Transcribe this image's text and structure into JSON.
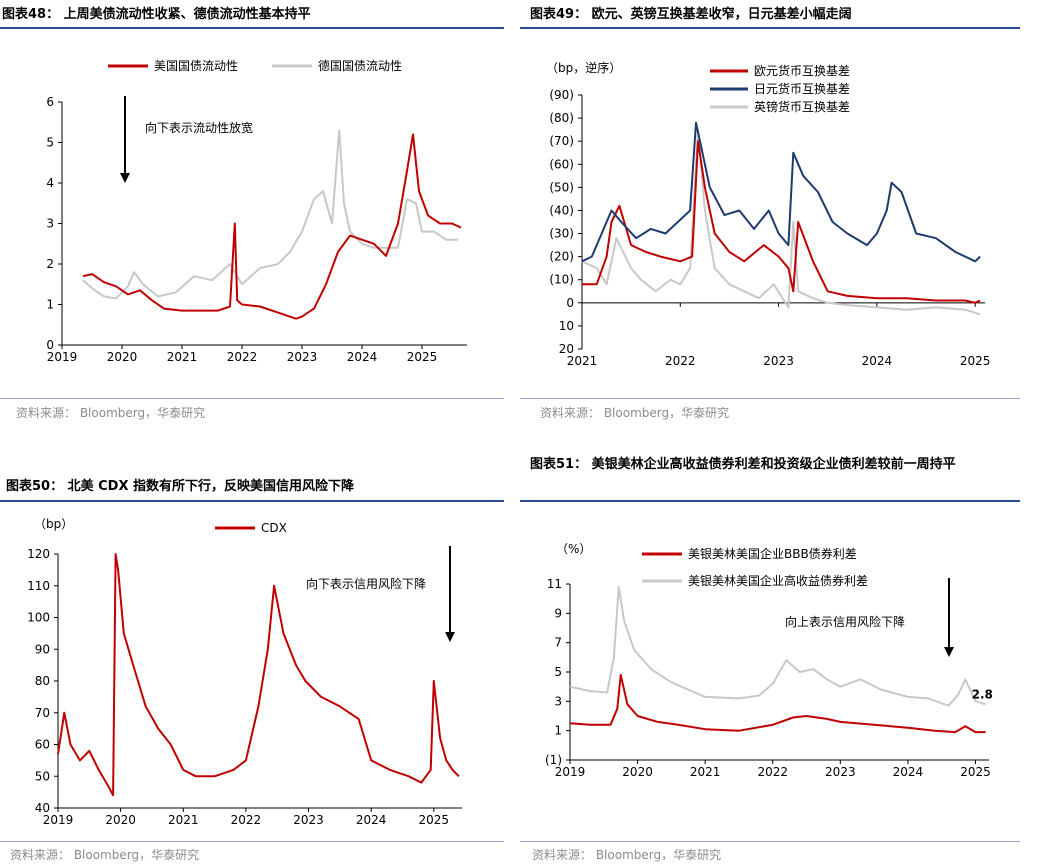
{
  "panels": [
    {
      "title": "图表48：  上周美债流动性收紧、德债流动性基本持平",
      "source": "资料来源：  Bloomberg，华泰研究"
    },
    {
      "title": "图表49：  欧元、英镑互换基差收窄，日元基差小幅走阔",
      "source": "资料来源：  Bloomberg，华泰研究"
    },
    {
      "title": "图表50：  北美 CDX 指数有所下行，反映美国信用风险下降",
      "source": "资料来源：  Bloomberg，华泰研究"
    },
    {
      "title": "图表51：  美银美林企业高收益债券利差和投资级企业债利差较前一周持平",
      "source": "资料来源：  Bloomberg，华泰研究"
    }
  ],
  "chart_data": [
    {
      "type": "line",
      "title": "上周美债流动性收紧、德债流动性基本持平",
      "ylabel": "",
      "ylim": [
        0,
        6
      ],
      "yticks": [
        0,
        1,
        2,
        3,
        4,
        5,
        6
      ],
      "ytick_labels": [
        "0",
        "1",
        "2",
        "3",
        "4",
        "5",
        "6"
      ],
      "xlim": [
        2019,
        2025.75
      ],
      "xticks": [
        2019,
        2020,
        2021,
        2022,
        2023,
        2024,
        2025
      ],
      "xtick_labels": [
        "2019",
        "2020",
        "2021",
        "2022",
        "2023",
        "2024",
        "2025"
      ],
      "annotation": "向下表示流动性放宽",
      "legend": [
        "美国国债流动性",
        "德国国债流动性"
      ],
      "series": [
        {
          "name": "美国国债流动性",
          "color": "#c00000",
          "x": [
            2019.35,
            2019.5,
            2019.7,
            2019.9,
            2020.1,
            2020.3,
            2020.5,
            2020.7,
            2021.0,
            2021.3,
            2021.6,
            2021.8,
            2021.88,
            2021.92,
            2022.0,
            2022.3,
            2022.6,
            2022.9,
            2023.0,
            2023.2,
            2023.4,
            2023.6,
            2023.8,
            2024.0,
            2024.2,
            2024.4,
            2024.6,
            2024.75,
            2024.85,
            2024.95,
            2025.1,
            2025.3,
            2025.5,
            2025.65
          ],
          "y": [
            1.7,
            1.75,
            1.55,
            1.45,
            1.25,
            1.35,
            1.1,
            0.9,
            0.85,
            0.85,
            0.85,
            0.95,
            3.0,
            1.1,
            1.0,
            0.95,
            0.8,
            0.65,
            0.7,
            0.9,
            1.5,
            2.3,
            2.7,
            2.6,
            2.5,
            2.2,
            3.0,
            4.3,
            5.2,
            3.8,
            3.2,
            3.0,
            3.0,
            2.9
          ]
        },
        {
          "name": "德国国债流动性",
          "color": "#c8c8c8",
          "x": [
            2019.35,
            2019.5,
            2019.7,
            2019.9,
            2020.1,
            2020.2,
            2020.35,
            2020.6,
            2020.9,
            2021.2,
            2021.5,
            2021.8,
            2022.0,
            2022.3,
            2022.6,
            2022.8,
            2023.0,
            2023.2,
            2023.35,
            2023.5,
            2023.62,
            2023.7,
            2023.8,
            2024.0,
            2024.2,
            2024.4,
            2024.6,
            2024.75,
            2024.9,
            2025.0,
            2025.2,
            2025.4,
            2025.6
          ],
          "y": [
            1.6,
            1.4,
            1.2,
            1.15,
            1.45,
            1.8,
            1.5,
            1.2,
            1.3,
            1.7,
            1.6,
            2.0,
            1.5,
            1.9,
            2.0,
            2.3,
            2.8,
            3.6,
            3.8,
            3.0,
            5.3,
            3.5,
            2.8,
            2.5,
            2.4,
            2.4,
            2.4,
            3.6,
            3.5,
            2.8,
            2.8,
            2.6,
            2.6
          ]
        }
      ]
    },
    {
      "type": "line",
      "title": "欧元、英镑互换基差收窄，日元基差小幅走阔",
      "ylabel": "（bp，逆序）",
      "ylim": [
        -90,
        20
      ],
      "inverted": true,
      "yticks": [
        -90,
        -80,
        -70,
        -60,
        -50,
        -40,
        -30,
        -20,
        -10,
        0,
        10,
        20
      ],
      "ytick_labels": [
        "(90)",
        "(80)",
        "(70)",
        "(60)",
        "(50)",
        "(40)",
        "(30)",
        "(20)",
        "(10)",
        "0",
        "10",
        "20"
      ],
      "xlim": [
        2021,
        2025.1
      ],
      "xticks": [
        2021,
        2022,
        2023,
        2024,
        2025
      ],
      "xtick_labels": [
        "2021",
        "2022",
        "2023",
        "2024",
        "2025"
      ],
      "legend": [
        "欧元货币互换基差",
        "日元货币互换基差",
        "英镑货币互换基差"
      ],
      "series": [
        {
          "name": "欧元货币互换基差",
          "color": "#c00000",
          "x": [
            2021.0,
            2021.15,
            2021.25,
            2021.3,
            2021.38,
            2021.5,
            2021.65,
            2021.8,
            2022.0,
            2022.12,
            2022.18,
            2022.25,
            2022.35,
            2022.5,
            2022.65,
            2022.85,
            2023.0,
            2023.1,
            2023.15,
            2023.2,
            2023.35,
            2023.5,
            2023.7,
            2024.0,
            2024.3,
            2024.6,
            2024.9,
            2025.0,
            2025.05
          ],
          "y": [
            -8,
            -8,
            -20,
            -35,
            -42,
            -25,
            -22,
            -20,
            -18,
            -20,
            -70,
            -50,
            -30,
            -22,
            -18,
            -25,
            -20,
            -15,
            -5,
            -35,
            -18,
            -5,
            -3,
            -2,
            -2,
            -1,
            -1,
            0,
            -1
          ]
        },
        {
          "name": "日元货币互换基差",
          "color": "#1f3a6e",
          "x": [
            2021.0,
            2021.1,
            2021.2,
            2021.3,
            2021.4,
            2021.55,
            2021.7,
            2021.85,
            2022.0,
            2022.1,
            2022.16,
            2022.2,
            2022.3,
            2022.45,
            2022.6,
            2022.75,
            2022.9,
            2023.0,
            2023.1,
            2023.15,
            2023.25,
            2023.4,
            2023.55,
            2023.7,
            2023.9,
            2024.0,
            2024.1,
            2024.15,
            2024.25,
            2024.4,
            2024.6,
            2024.8,
            2025.0,
            2025.05
          ],
          "y": [
            -18,
            -20,
            -30,
            -40,
            -35,
            -28,
            -32,
            -30,
            -36,
            -40,
            -78,
            -70,
            -50,
            -38,
            -40,
            -32,
            -40,
            -30,
            -25,
            -65,
            -55,
            -48,
            -35,
            -30,
            -25,
            -30,
            -40,
            -52,
            -48,
            -30,
            -28,
            -22,
            -18,
            -20
          ]
        },
        {
          "name": "英镑货币互换基差",
          "color": "#c8c8c8",
          "x": [
            2021.0,
            2021.15,
            2021.25,
            2021.35,
            2021.5,
            2021.6,
            2021.75,
            2021.9,
            2022.0,
            2022.1,
            2022.18,
            2022.25,
            2022.35,
            2022.5,
            2022.65,
            2022.8,
            2022.95,
            2023.1,
            2023.15,
            2023.2,
            2023.35,
            2023.5,
            2023.7,
            2024.0,
            2024.3,
            2024.6,
            2024.9,
            2025.05
          ],
          "y": [
            -18,
            -15,
            -8,
            -28,
            -15,
            -10,
            -5,
            -10,
            -8,
            -15,
            -75,
            -40,
            -15,
            -8,
            -5,
            -2,
            -8,
            2,
            -35,
            -5,
            -2,
            0,
            1,
            2,
            3,
            2,
            3,
            5
          ]
        }
      ]
    },
    {
      "type": "line",
      "title": "北美 CDX 指数有所下行，反映美国信用风险下降",
      "ylabel": "（bp）",
      "ylim": [
        40,
        120
      ],
      "yticks": [
        40,
        50,
        60,
        70,
        80,
        90,
        100,
        110,
        120
      ],
      "ytick_labels": [
        "40",
        "50",
        "60",
        "70",
        "80",
        "90",
        "100",
        "110",
        "120"
      ],
      "xlim": [
        2019,
        2025.45
      ],
      "xticks": [
        2019,
        2020,
        2021,
        2022,
        2023,
        2024,
        2025
      ],
      "xtick_labels": [
        "2019",
        "2020",
        "2021",
        "2022",
        "2023",
        "2024",
        "2025"
      ],
      "annotation": "向下表示信用风险下降",
      "legend": [
        "CDX"
      ],
      "series": [
        {
          "name": "CDX",
          "color": "#c00000",
          "x": [
            2019.0,
            2019.1,
            2019.2,
            2019.35,
            2019.5,
            2019.65,
            2019.8,
            2019.88,
            2019.92,
            2019.96,
            2020.05,
            2020.2,
            2020.4,
            2020.6,
            2020.8,
            2021.0,
            2021.2,
            2021.5,
            2021.8,
            2022.0,
            2022.2,
            2022.35,
            2022.45,
            2022.6,
            2022.8,
            2022.95,
            2023.2,
            2023.5,
            2023.8,
            2024.0,
            2024.3,
            2024.6,
            2024.8,
            2024.95,
            2025.0,
            2025.1,
            2025.2,
            2025.3,
            2025.4
          ],
          "y": [
            57,
            70,
            60,
            55,
            58,
            52,
            47,
            44,
            120,
            115,
            95,
            85,
            72,
            65,
            60,
            52,
            50,
            50,
            52,
            55,
            72,
            90,
            110,
            95,
            85,
            80,
            75,
            72,
            68,
            55,
            52,
            50,
            48,
            52,
            80,
            62,
            55,
            52,
            50
          ]
        }
      ]
    },
    {
      "type": "line",
      "title": "美银美林企业高收益债券利差和投资级企业债利差较前一周持平",
      "ylabel": "（%）",
      "ylim": [
        -1,
        11
      ],
      "yticks": [
        -1,
        1,
        3,
        5,
        7,
        9,
        11
      ],
      "ytick_labels": [
        "(1)",
        "1",
        "3",
        "5",
        "7",
        "9",
        "11"
      ],
      "xlim": [
        2019,
        2025.2
      ],
      "xticks": [
        2019,
        2020,
        2021,
        2022,
        2023,
        2024,
        2025
      ],
      "xtick_labels": [
        "2019",
        "2020",
        "2021",
        "2022",
        "2023",
        "2024",
        "2025"
      ],
      "annotation": "向上表示信用风险下降",
      "data_label": "2.8",
      "legend": [
        "美银美林美国企业BBB债券利差",
        "美银美林美国企业高收益债券利差"
      ],
      "series": [
        {
          "name": "美银美林美国企业BBB债券利差",
          "color": "#c00000",
          "x": [
            2019.0,
            2019.3,
            2019.6,
            2019.7,
            2019.75,
            2019.85,
            2020.0,
            2020.3,
            2020.6,
            2021.0,
            2021.5,
            2022.0,
            2022.3,
            2022.5,
            2022.8,
            2023.0,
            2023.5,
            2024.0,
            2024.4,
            2024.7,
            2024.85,
            2025.0,
            2025.15
          ],
          "y": [
            1.5,
            1.4,
            1.4,
            2.5,
            4.8,
            2.8,
            2.0,
            1.6,
            1.4,
            1.1,
            1.0,
            1.4,
            1.9,
            2.0,
            1.8,
            1.6,
            1.4,
            1.2,
            1.0,
            0.9,
            1.3,
            0.9,
            0.9
          ]
        },
        {
          "name": "美银美林美国企业高收益债券利差",
          "color": "#c8c8c8",
          "x": [
            2019.0,
            2019.3,
            2019.55,
            2019.65,
            2019.72,
            2019.8,
            2019.95,
            2020.2,
            2020.5,
            2021.0,
            2021.5,
            2021.8,
            2022.0,
            2022.2,
            2022.4,
            2022.6,
            2022.8,
            2023.0,
            2023.3,
            2023.6,
            2024.0,
            2024.3,
            2024.6,
            2024.75,
            2024.85,
            2025.0,
            2025.15
          ],
          "y": [
            4.0,
            3.7,
            3.6,
            6.0,
            10.8,
            8.5,
            6.5,
            5.2,
            4.3,
            3.3,
            3.2,
            3.4,
            4.2,
            5.8,
            5.0,
            5.2,
            4.5,
            4.0,
            4.5,
            3.8,
            3.3,
            3.2,
            2.7,
            3.5,
            4.5,
            3.0,
            2.8
          ]
        }
      ]
    }
  ]
}
